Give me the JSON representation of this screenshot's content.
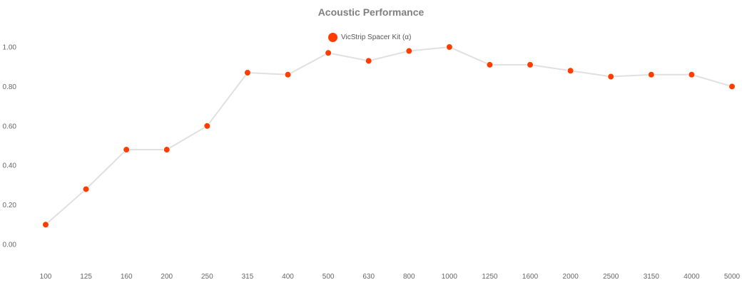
{
  "chart_data": {
    "type": "line",
    "title": "Acoustic Performance",
    "xlabel": "",
    "ylabel": "",
    "categories": [
      "100",
      "125",
      "160",
      "200",
      "250",
      "315",
      "400",
      "500",
      "630",
      "800",
      "1000",
      "1250",
      "1600",
      "2000",
      "2500",
      "3150",
      "4000",
      "5000"
    ],
    "series": [
      {
        "name": "VicStrip Spacer Kit (α)",
        "color": "#ff3d00",
        "values": [
          0.1,
          0.28,
          0.48,
          0.48,
          0.6,
          0.87,
          0.86,
          0.97,
          0.93,
          0.98,
          1.0,
          0.91,
          0.91,
          0.88,
          0.85,
          0.86,
          0.86,
          0.8
        ]
      }
    ],
    "yticks": [
      "0.00",
      "0.20",
      "0.40",
      "0.60",
      "0.80",
      "1.00"
    ],
    "ylim": [
      0,
      1
    ],
    "grid": false,
    "legend_position": "top-center",
    "line_color": "#e0e0e0"
  }
}
